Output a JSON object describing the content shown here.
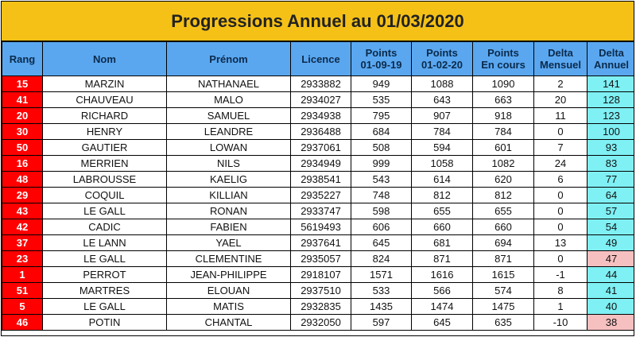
{
  "title": "Progressions Annuel au 01/03/2020",
  "headers": {
    "rang": "Rang",
    "nom": "Nom",
    "prenom": "Prénom",
    "licence": "Licence",
    "p1": [
      "Points",
      "01-09-19"
    ],
    "p2": [
      "Points",
      "01-02-20"
    ],
    "p3": [
      "Points",
      "En cours"
    ],
    "dm": [
      "Delta",
      "Mensuel"
    ],
    "da": [
      "Delta",
      "Annuel"
    ]
  },
  "colors": {
    "title_bg": "#f5c117",
    "header_bg": "#5aa7f0",
    "rank_bg": "#ff0000",
    "delta_pos_bg": "#7ff0f4",
    "delta_neg_bg": "#f7c0c0"
  },
  "rows": [
    {
      "rang": "15",
      "nom": "MARZIN",
      "prenom": "NATHANAEL",
      "licence": "2933882",
      "p1": "949",
      "p2": "1088",
      "p3": "1090",
      "dm": "2",
      "da": "141",
      "da_neg": false
    },
    {
      "rang": "41",
      "nom": "CHAUVEAU",
      "prenom": "MALO",
      "licence": "2934027",
      "p1": "535",
      "p2": "643",
      "p3": "663",
      "dm": "20",
      "da": "128",
      "da_neg": false
    },
    {
      "rang": "20",
      "nom": "RICHARD",
      "prenom": "SAMUEL",
      "licence": "2934938",
      "p1": "795",
      "p2": "907",
      "p3": "918",
      "dm": "11",
      "da": "123",
      "da_neg": false
    },
    {
      "rang": "30",
      "nom": "HENRY",
      "prenom": "LEANDRE",
      "licence": "2936488",
      "p1": "684",
      "p2": "784",
      "p3": "784",
      "dm": "0",
      "da": "100",
      "da_neg": false
    },
    {
      "rang": "50",
      "nom": "GAUTIER",
      "prenom": "LOWAN",
      "licence": "2937061",
      "p1": "508",
      "p2": "594",
      "p3": "601",
      "dm": "7",
      "da": "93",
      "da_neg": false
    },
    {
      "rang": "16",
      "nom": "MERRIEN",
      "prenom": "NILS",
      "licence": "2934949",
      "p1": "999",
      "p2": "1058",
      "p3": "1082",
      "dm": "24",
      "da": "83",
      "da_neg": false
    },
    {
      "rang": "48",
      "nom": "LABROUSSE",
      "prenom": "KAELIG",
      "licence": "2938541",
      "p1": "543",
      "p2": "614",
      "p3": "620",
      "dm": "6",
      "da": "77",
      "da_neg": false
    },
    {
      "rang": "29",
      "nom": "COQUIL",
      "prenom": "KILLIAN",
      "licence": "2935227",
      "p1": "748",
      "p2": "812",
      "p3": "812",
      "dm": "0",
      "da": "64",
      "da_neg": false
    },
    {
      "rang": "43",
      "nom": "LE GALL",
      "prenom": "RONAN",
      "licence": "2933747",
      "p1": "598",
      "p2": "655",
      "p3": "655",
      "dm": "0",
      "da": "57",
      "da_neg": false
    },
    {
      "rang": "42",
      "nom": "CADIC",
      "prenom": "FABIEN",
      "licence": "5619493",
      "p1": "606",
      "p2": "660",
      "p3": "660",
      "dm": "0",
      "da": "54",
      "da_neg": false
    },
    {
      "rang": "37",
      "nom": "LE LANN",
      "prenom": "YAEL",
      "licence": "2937641",
      "p1": "645",
      "p2": "681",
      "p3": "694",
      "dm": "13",
      "da": "49",
      "da_neg": false
    },
    {
      "rang": "23",
      "nom": "LE GALL",
      "prenom": "CLEMENTINE",
      "licence": "2935057",
      "p1": "824",
      "p2": "871",
      "p3": "871",
      "dm": "0",
      "da": "47",
      "da_neg": true
    },
    {
      "rang": "1",
      "nom": "PERROT",
      "prenom": "JEAN-PHILIPPE",
      "licence": "2918107",
      "p1": "1571",
      "p2": "1616",
      "p3": "1615",
      "dm": "-1",
      "da": "44",
      "da_neg": false
    },
    {
      "rang": "51",
      "nom": "MARTRES",
      "prenom": "ELOUAN",
      "licence": "2937510",
      "p1": "533",
      "p2": "566",
      "p3": "574",
      "dm": "8",
      "da": "41",
      "da_neg": false
    },
    {
      "rang": "5",
      "nom": "LE GALL",
      "prenom": "MATIS",
      "licence": "2932835",
      "p1": "1435",
      "p2": "1474",
      "p3": "1475",
      "dm": "1",
      "da": "40",
      "da_neg": false
    },
    {
      "rang": "46",
      "nom": "POTIN",
      "prenom": "CHANTAL",
      "licence": "2932050",
      "p1": "597",
      "p2": "645",
      "p3": "635",
      "dm": "-10",
      "da": "38",
      "da_neg": true
    }
  ]
}
